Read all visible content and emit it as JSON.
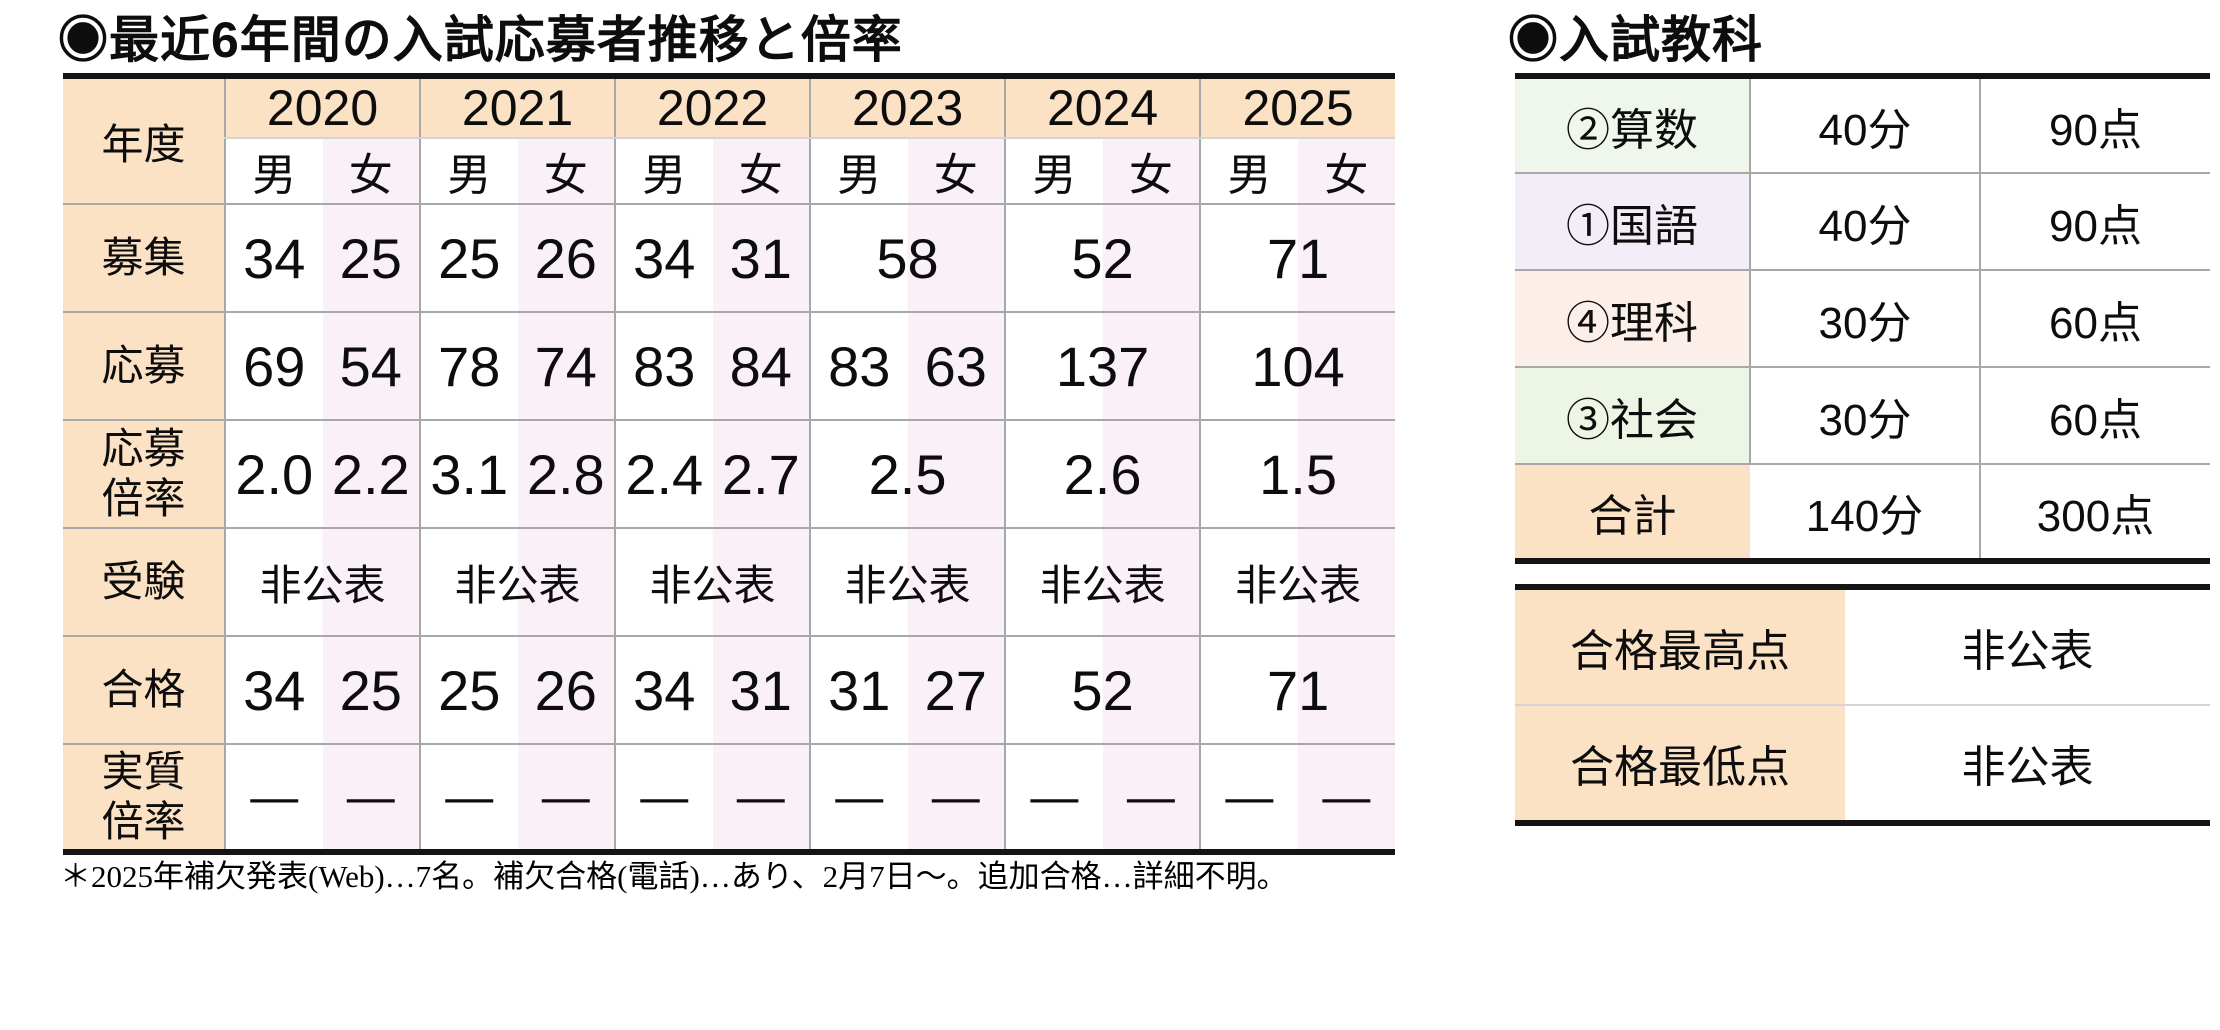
{
  "colors": {
    "peach": "#FBE2C4",
    "pink": "#FAF0F7",
    "green_a": "#EFF6EB",
    "green_b": "#EDF5E4",
    "lavender": "#F2EDF7",
    "rose": "#FCEEE8",
    "grid": "#a8a8a8",
    "grid_light": "#d4d4d4",
    "border": "#141414",
    "text": "#0d0d0d"
  },
  "left": {
    "title": "◉最近6年間の入試応募者推移と倍率",
    "footnote": "＊2025年補欠発表(Web)…7名。補欠合格(電話)…あり、2月7日～。追加合格…詳細不明。",
    "table": {
      "corner_label": "年度",
      "years": [
        "2020",
        "2021",
        "2022",
        "2023",
        "2024",
        "2025"
      ],
      "gender_headers": [
        "男",
        "女"
      ],
      "rows": [
        {
          "label": "募集",
          "kind": "num",
          "cells": [
            {
              "m": "34",
              "f": "25"
            },
            {
              "m": "25",
              "f": "26"
            },
            {
              "m": "34",
              "f": "31"
            },
            {
              "merged": "58"
            },
            {
              "merged": "52"
            },
            {
              "merged": "71"
            }
          ]
        },
        {
          "label": "応募",
          "kind": "num",
          "cells": [
            {
              "m": "69",
              "f": "54"
            },
            {
              "m": "78",
              "f": "74"
            },
            {
              "m": "83",
              "f": "84"
            },
            {
              "m": "83",
              "f": "63"
            },
            {
              "merged": "137"
            },
            {
              "merged": "104"
            }
          ]
        },
        {
          "label": "応募\n倍率",
          "kind": "num",
          "cells": [
            {
              "m": "2.0",
              "f": "2.2"
            },
            {
              "m": "3.1",
              "f": "2.8"
            },
            {
              "m": "2.4",
              "f": "2.7"
            },
            {
              "merged": "2.5"
            },
            {
              "merged": "2.6"
            },
            {
              "merged": "1.5"
            }
          ]
        },
        {
          "label": "受験",
          "kind": "text",
          "cells": [
            {
              "merged": "非公表"
            },
            {
              "merged": "非公表"
            },
            {
              "merged": "非公表"
            },
            {
              "merged": "非公表"
            },
            {
              "merged": "非公表"
            },
            {
              "merged": "非公表"
            }
          ]
        },
        {
          "label": "合格",
          "kind": "num",
          "cells": [
            {
              "m": "34",
              "f": "25"
            },
            {
              "m": "25",
              "f": "26"
            },
            {
              "m": "34",
              "f": "31"
            },
            {
              "m": "31",
              "f": "27"
            },
            {
              "merged": "52"
            },
            {
              "merged": "71"
            }
          ]
        },
        {
          "label": "実質\n倍率",
          "kind": "dash",
          "cells": [
            {
              "m": "—",
              "f": "—"
            },
            {
              "m": "—",
              "f": "—"
            },
            {
              "m": "—",
              "f": "—"
            },
            {
              "m": "—",
              "f": "—"
            },
            {
              "m": "—",
              "f": "—"
            },
            {
              "m": "—",
              "f": "—"
            }
          ]
        }
      ]
    }
  },
  "right": {
    "title": "◉入試教科",
    "subjects": [
      {
        "label": "②算数",
        "time": "40分",
        "points": "90点",
        "bg": "green_a"
      },
      {
        "label": "①国語",
        "time": "40分",
        "points": "90点",
        "bg": "lavender"
      },
      {
        "label": "④理科",
        "time": "30分",
        "points": "60点",
        "bg": "rose"
      },
      {
        "label": "③社会",
        "time": "30分",
        "points": "60点",
        "bg": "green_b"
      },
      {
        "label": "合計",
        "time": "140分",
        "points": "300点",
        "bg": "peach"
      }
    ],
    "scores": [
      {
        "label": "合格最高点",
        "value": "非公表"
      },
      {
        "label": "合格最低点",
        "value": "非公表"
      }
    ]
  }
}
